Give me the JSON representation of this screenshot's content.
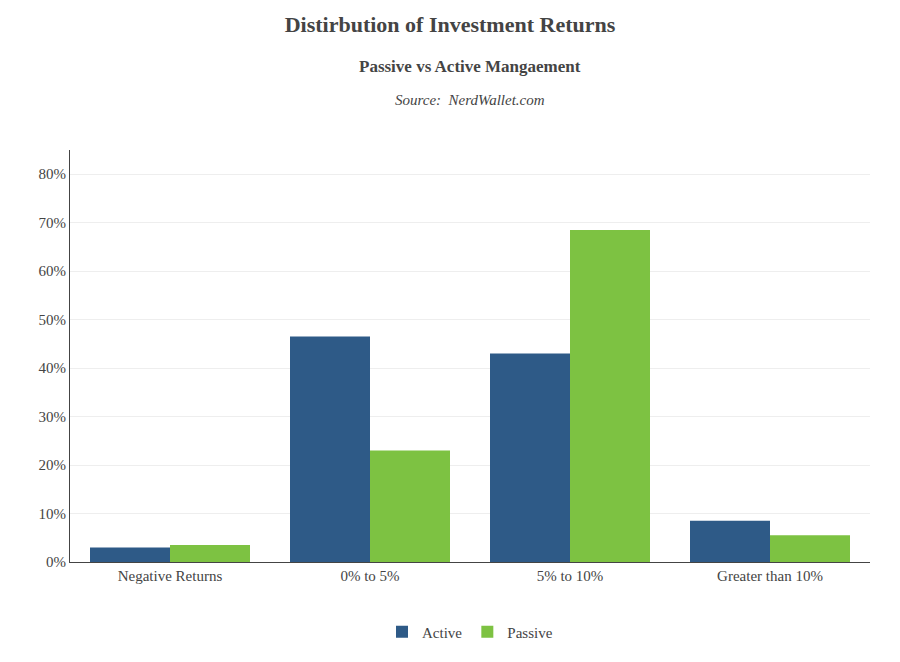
{
  "chart_data": {
    "type": "bar",
    "title": "Distirbution of Investment Returns",
    "subtitle": "Passive vs Active Mangaement",
    "annotations": [
      "Source:  NerdWallet.com"
    ],
    "categories": [
      "Negative Returns",
      "0% to 5%",
      "5% to 10%",
      "Greater than 10%"
    ],
    "series": [
      {
        "name": "Active",
        "color": "#2E5A87",
        "values": [
          3,
          46.5,
          43,
          8.5
        ]
      },
      {
        "name": "Passive",
        "color": "#7DC242",
        "values": [
          3.5,
          23,
          68.5,
          5.5
        ]
      }
    ],
    "ylim": [
      0,
      85
    ],
    "yticks": [
      {
        "value": 0,
        "label": "0%"
      },
      {
        "value": 10,
        "label": "10%"
      },
      {
        "value": 20,
        "label": "20%"
      },
      {
        "value": 30,
        "label": "30%"
      },
      {
        "value": 40,
        "label": "40%"
      },
      {
        "value": 50,
        "label": "50%"
      },
      {
        "value": 60,
        "label": "60%"
      },
      {
        "value": 70,
        "label": "70%"
      },
      {
        "value": 80,
        "label": "80%"
      }
    ],
    "grid": true,
    "legend": "bottom"
  }
}
